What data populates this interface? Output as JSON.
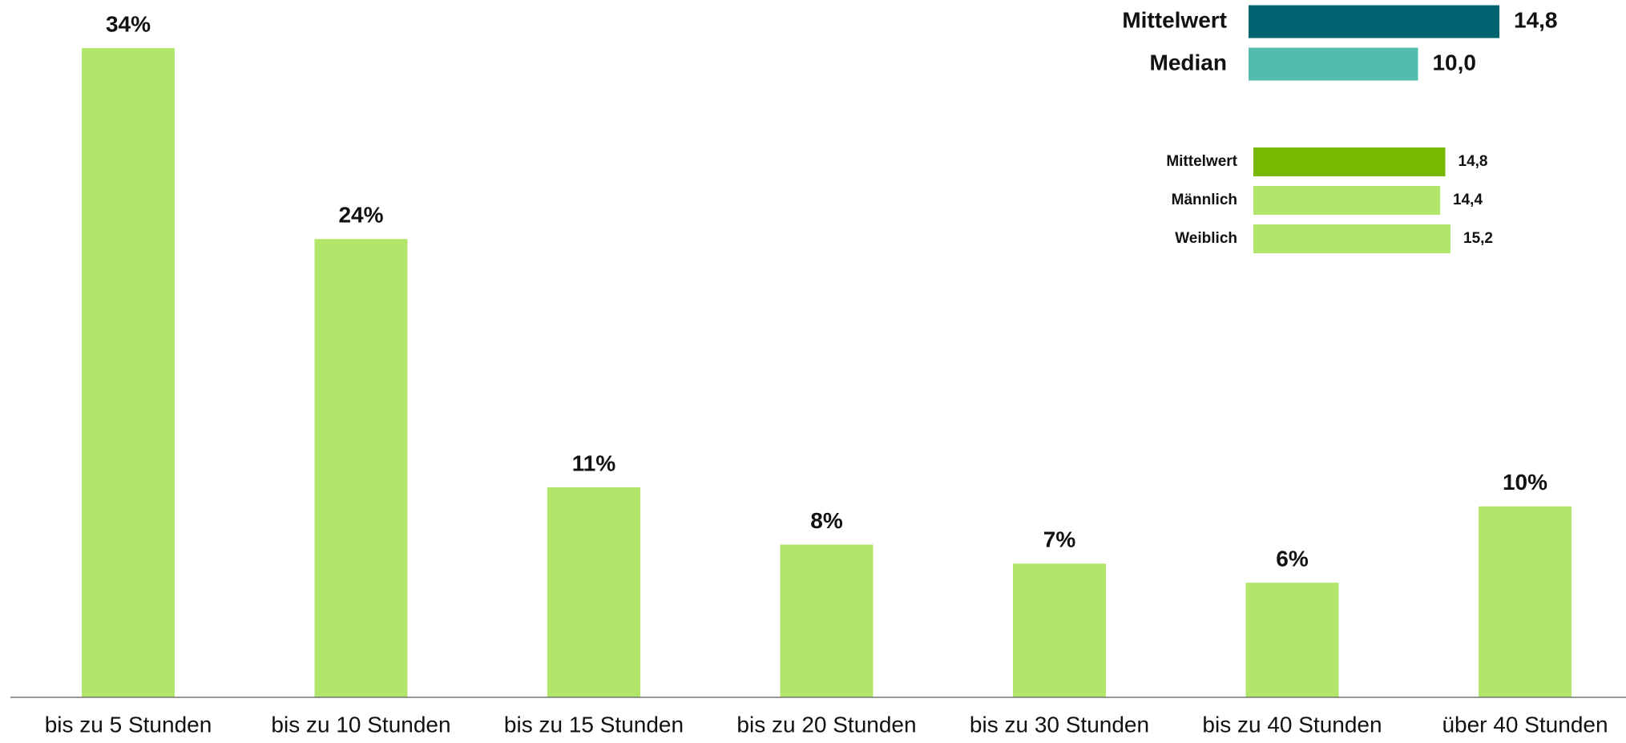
{
  "chart_data": [
    {
      "type": "bar",
      "categories": [
        "bis zu 5 Stunden",
        "bis zu 10 Stunden",
        "bis zu 15 Stunden",
        "bis zu 20 Stunden",
        "bis zu 30 Stunden",
        "bis zu 40 Stunden",
        "über 40 Stunden"
      ],
      "values": [
        34,
        24,
        11,
        8,
        7,
        6,
        10
      ],
      "value_labels": [
        "34%",
        "24%",
        "11%",
        "8%",
        "7%",
        "6%",
        "10%"
      ],
      "color": "#b1e66b"
    },
    {
      "type": "hbar",
      "categories": [
        "Mittelwert",
        "Median"
      ],
      "values": [
        14.8,
        10.0
      ],
      "value_labels": [
        "14,8",
        "10,0"
      ],
      "colors": [
        "#006470",
        "#52bdad"
      ]
    },
    {
      "type": "hbar",
      "categories": [
        "Mittelwert",
        "Männlich",
        "Weiblich"
      ],
      "values": [
        14.8,
        14.4,
        15.2
      ],
      "value_labels": [
        "14,8",
        "14,4",
        "15,2"
      ],
      "colors": [
        "#77b800",
        "#b1e66b",
        "#b1e66b"
      ]
    }
  ]
}
